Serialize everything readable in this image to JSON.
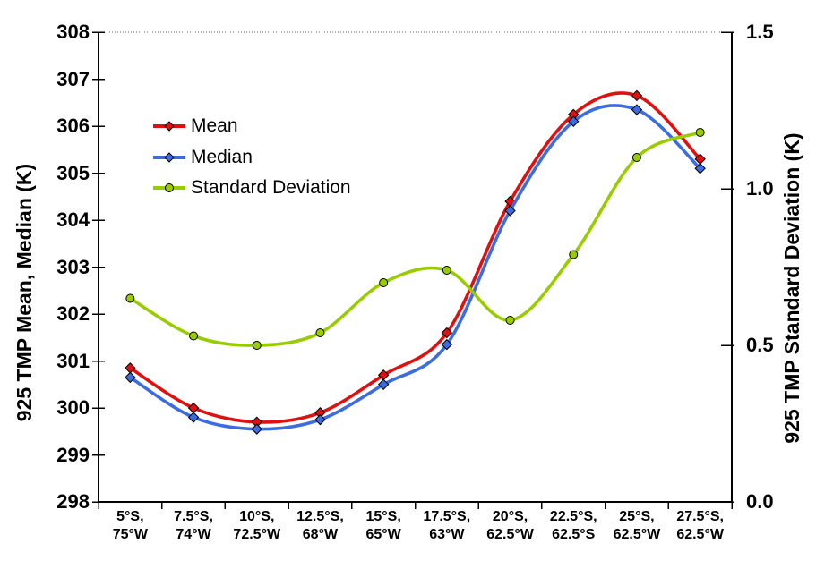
{
  "chart_data": {
    "type": "line",
    "title": "",
    "categories": [
      "5°S, 75°W",
      "7.5°S, 74°W",
      "10°S, 72.5°W",
      "12.5°S, 68°W",
      "15°S, 65°W",
      "17.5°S, 63°W",
      "20°S, 62.5°W",
      "22.5°S, 62.5°S",
      "25°S, 62.5°W",
      "27.5°S, 62.5°W"
    ],
    "series": [
      {
        "name": "Mean",
        "axis": "left",
        "color": "#E01010",
        "marker": "diamond",
        "values": [
          300.85,
          300.0,
          299.7,
          299.9,
          300.7,
          301.6,
          304.4,
          306.25,
          306.65,
          305.3
        ]
      },
      {
        "name": "Median",
        "axis": "left",
        "color": "#3B6CE0",
        "marker": "diamond",
        "values": [
          300.65,
          299.8,
          299.55,
          299.75,
          300.5,
          301.35,
          304.2,
          306.1,
          306.35,
          305.1
        ]
      },
      {
        "name": "Standard Deviation",
        "axis": "right",
        "color": "#99CC00",
        "marker": "circle",
        "values": [
          0.65,
          0.53,
          0.5,
          0.54,
          0.7,
          0.74,
          0.58,
          0.79,
          1.1,
          1.18
        ]
      }
    ],
    "left_axis": {
      "title": "925 TMP Mean, Median (K)",
      "min": 298,
      "max": 308,
      "tick_step": 1,
      "tick_labels": [
        "298",
        "299",
        "300",
        "301",
        "302",
        "303",
        "304",
        "305",
        "306",
        "307",
        "308"
      ]
    },
    "right_axis": {
      "title": "925 TMP Standard Deviation (K)",
      "min": 0.0,
      "max": 1.5,
      "tick_step": 0.5,
      "tick_labels": [
        "0.0",
        "0.5",
        "1.0",
        "1.5"
      ]
    },
    "legend": {
      "position": "inside-top-left",
      "items": [
        "Mean",
        "Median",
        "Standard Deviation"
      ]
    },
    "gridlines": {
      "top_boundary_dotted": true
    },
    "colors": {
      "axis": "#000000",
      "text": "#000000",
      "background": "#FFFFFF",
      "dotted_line": "#666666"
    }
  }
}
